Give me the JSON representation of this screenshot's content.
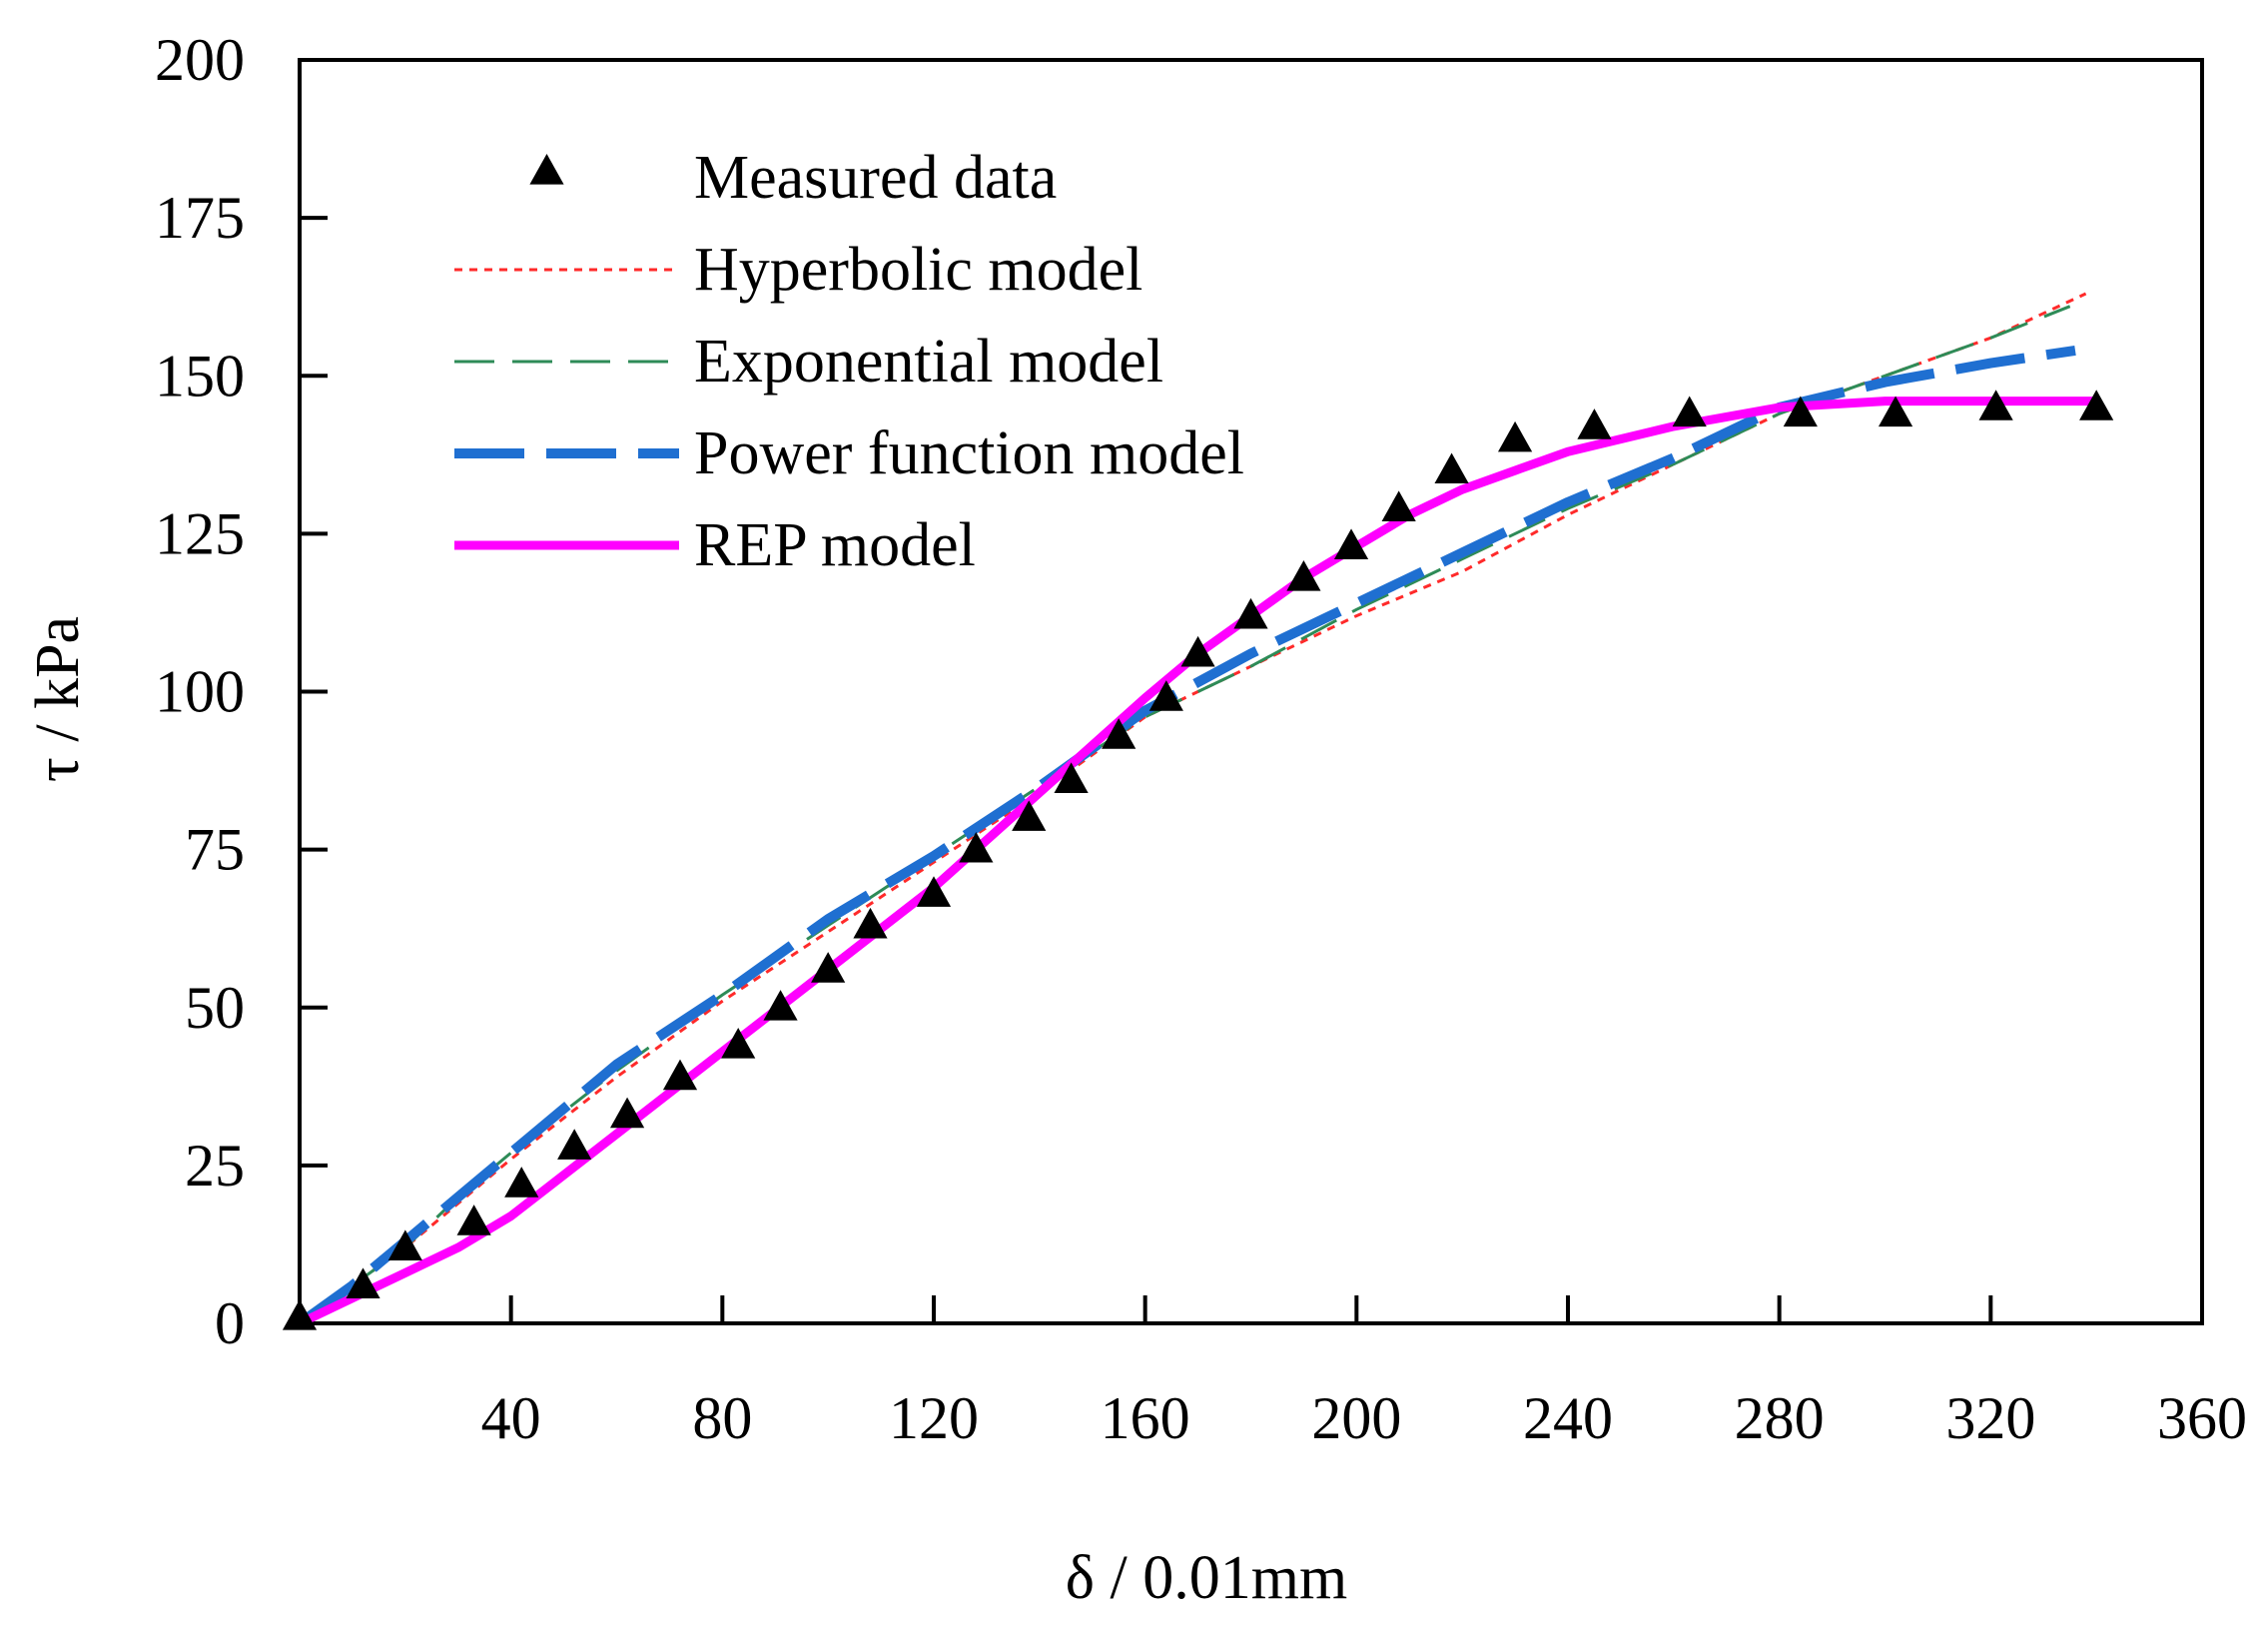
{
  "chart_data": {
    "type": "scatter",
    "title": "",
    "xlabel": "δ / 0.01mm",
    "ylabel": "τ / kPa",
    "xlim": [
      0,
      360
    ],
    "ylim": [
      0,
      200
    ],
    "xticks": [
      40,
      80,
      120,
      160,
      200,
      240,
      280,
      320,
      360
    ],
    "yticks": [
      0,
      25,
      50,
      75,
      100,
      125,
      150,
      175,
      200
    ],
    "grid": false,
    "legend_position": "top-left",
    "colors": {
      "measured": "#000000",
      "hyperbolic": "#ff2a2a",
      "exponential": "#2e8b57",
      "power": "#1f6fd1",
      "rep": "#ff00ff"
    },
    "series": [
      {
        "name": "Measured data",
        "kind": "markers",
        "marker": "triangle",
        "x": [
          0,
          12,
          20,
          33,
          42,
          52,
          62,
          72,
          83,
          91,
          100,
          108,
          120,
          128,
          138,
          146,
          155,
          164,
          170,
          180,
          190,
          199,
          208,
          218,
          230,
          245,
          263,
          284,
          302,
          321,
          340
        ],
        "y": [
          0,
          5,
          11,
          15,
          21,
          27,
          32,
          38,
          43,
          49,
          55,
          62,
          67,
          74,
          79,
          85,
          92,
          98,
          105,
          111,
          117,
          122,
          128,
          134,
          139,
          141,
          143,
          143,
          143,
          144,
          144
        ]
      },
      {
        "name": "Hyperbolic model",
        "kind": "line",
        "style": "dotted",
        "x": [
          0,
          10,
          20,
          30,
          40,
          60,
          80,
          100,
          120,
          140,
          160,
          180,
          200,
          220,
          240,
          260,
          280,
          300,
          320,
          338
        ],
        "y": [
          0,
          6,
          12,
          19,
          26,
          39,
          51,
          62,
          73,
          84,
          96,
          104,
          112,
          119,
          128,
          136,
          144,
          150,
          156,
          163
        ]
      },
      {
        "name": "Exponential model",
        "kind": "line",
        "style": "long-dash",
        "x": [
          0,
          10,
          20,
          30,
          40,
          60,
          80,
          100,
          120,
          140,
          160,
          180,
          200,
          220,
          240,
          260,
          280,
          300,
          320,
          335
        ],
        "y": [
          0,
          6,
          12,
          20,
          27,
          40,
          52,
          63,
          74,
          85,
          96,
          104,
          113,
          121,
          129,
          136,
          144,
          150,
          156,
          161
        ]
      },
      {
        "name": "Power function model",
        "kind": "line",
        "style": "thick-dash",
        "x": [
          0,
          10,
          20,
          30,
          40,
          60,
          80,
          100,
          120,
          140,
          160,
          180,
          200,
          220,
          240,
          260,
          280,
          300,
          320,
          336
        ],
        "y": [
          0,
          6,
          13,
          20,
          27,
          41,
          52,
          64,
          74,
          85,
          97,
          106,
          114,
          122,
          130,
          137,
          145,
          149,
          152,
          154
        ]
      },
      {
        "name": "REP model",
        "kind": "line",
        "style": "solid",
        "x": [
          0,
          10,
          20,
          30,
          40,
          60,
          80,
          100,
          120,
          140,
          160,
          170,
          180,
          190,
          200,
          210,
          220,
          230,
          240,
          260,
          280,
          300,
          320,
          340
        ],
        "y": [
          0,
          4,
          8,
          12,
          17,
          30,
          43,
          56,
          69,
          84,
          99,
          106,
          112,
          118,
          123,
          128,
          132,
          135,
          138,
          142,
          145,
          146,
          146,
          146
        ]
      }
    ]
  }
}
